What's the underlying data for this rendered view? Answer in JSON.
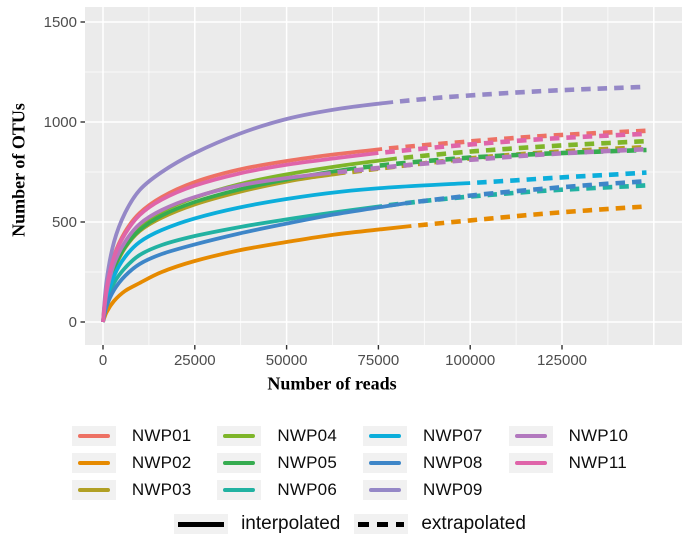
{
  "figure": {
    "x_axis_title": "Number of reads",
    "y_axis_title": "Number of OTUs"
  },
  "legend": {
    "linetypes": [
      {
        "label": "interpolated",
        "style": "solid",
        "color": "#000000"
      },
      {
        "label": "extrapolated",
        "style": "dashed",
        "color": "#000000"
      }
    ]
  },
  "chart_data": {
    "type": "line",
    "title": "",
    "xlabel": "Number of reads",
    "ylabel": "Number of OTUs",
    "x_ticks": [
      0,
      25000,
      50000,
      75000,
      100000,
      125000
    ],
    "y_ticks": [
      0,
      500,
      1000,
      1500
    ],
    "xlim": [
      -6500,
      158000
    ],
    "ylim": [
      -75,
      1575
    ],
    "grid": true,
    "panel_bg": "#EBEBEB",
    "grid_color": "#FFFFFF",
    "tick_label_color": "#4D4D4D",
    "legend_position": "bottom",
    "linetype_note": "solid = interpolated (rarefaction), dashed = extrapolated",
    "series": [
      {
        "name": "NWP01",
        "color": "#ED7164",
        "observed_reads": 76000,
        "points": [
          [
            0,
            0
          ],
          [
            1000,
            175
          ],
          [
            3000,
            330
          ],
          [
            6000,
            450
          ],
          [
            10000,
            545
          ],
          [
            16000,
            625
          ],
          [
            25000,
            700
          ],
          [
            37000,
            762
          ],
          [
            50000,
            805
          ],
          [
            63000,
            838
          ],
          [
            76000,
            865
          ],
          [
            90000,
            888
          ],
          [
            105000,
            910
          ],
          [
            120000,
            930
          ],
          [
            134000,
            944
          ],
          [
            148000,
            956
          ]
        ]
      },
      {
        "name": "NWP02",
        "color": "#E68A00",
        "observed_reads": 84000,
        "points": [
          [
            0,
            0
          ],
          [
            1000,
            50
          ],
          [
            3000,
            105
          ],
          [
            6000,
            155
          ],
          [
            10000,
            195
          ],
          [
            16000,
            250
          ],
          [
            25000,
            305
          ],
          [
            37000,
            358
          ],
          [
            50000,
            400
          ],
          [
            63000,
            437
          ],
          [
            76000,
            464
          ],
          [
            84000,
            480
          ],
          [
            100000,
            508
          ],
          [
            116000,
            535
          ],
          [
            132000,
            558
          ],
          [
            148000,
            578
          ]
        ]
      },
      {
        "name": "NWP03",
        "color": "#B1A024",
        "observed_reads": 66000,
        "points": [
          [
            0,
            0
          ],
          [
            1000,
            130
          ],
          [
            3000,
            260
          ],
          [
            6000,
            370
          ],
          [
            10000,
            455
          ],
          [
            16000,
            522
          ],
          [
            25000,
            588
          ],
          [
            37000,
            650
          ],
          [
            50000,
            702
          ],
          [
            58000,
            726
          ],
          [
            66000,
            746
          ],
          [
            82000,
            782
          ],
          [
            100000,
            818
          ],
          [
            116000,
            842
          ],
          [
            132000,
            860
          ],
          [
            148000,
            874
          ]
        ]
      },
      {
        "name": "NWP04",
        "color": "#7EB529",
        "observed_reads": 80000,
        "points": [
          [
            0,
            0
          ],
          [
            1000,
            145
          ],
          [
            3000,
            280
          ],
          [
            6000,
            390
          ],
          [
            10000,
            478
          ],
          [
            16000,
            552
          ],
          [
            25000,
            622
          ],
          [
            37000,
            688
          ],
          [
            50000,
            738
          ],
          [
            65000,
            782
          ],
          [
            80000,
            818
          ],
          [
            96000,
            846
          ],
          [
            112000,
            868
          ],
          [
            130000,
            888
          ],
          [
            148000,
            904
          ]
        ]
      },
      {
        "name": "NWP05",
        "color": "#36AC50",
        "observed_reads": 69000,
        "points": [
          [
            0,
            0
          ],
          [
            1000,
            140
          ],
          [
            3000,
            270
          ],
          [
            6000,
            375
          ],
          [
            10000,
            460
          ],
          [
            16000,
            532
          ],
          [
            25000,
            600
          ],
          [
            37000,
            662
          ],
          [
            50000,
            712
          ],
          [
            60000,
            745
          ],
          [
            69000,
            770
          ],
          [
            85000,
            800
          ],
          [
            100000,
            822
          ],
          [
            116000,
            838
          ],
          [
            132000,
            850
          ],
          [
            148000,
            860
          ]
        ]
      },
      {
        "name": "NWP06",
        "color": "#22B2A2",
        "observed_reads": 76000,
        "points": [
          [
            0,
            0
          ],
          [
            1000,
            100
          ],
          [
            3000,
            195
          ],
          [
            6000,
            270
          ],
          [
            10000,
            335
          ],
          [
            16000,
            385
          ],
          [
            25000,
            430
          ],
          [
            37000,
            474
          ],
          [
            50000,
            513
          ],
          [
            63000,
            548
          ],
          [
            76000,
            580
          ],
          [
            90000,
            610
          ],
          [
            105000,
            635
          ],
          [
            120000,
            656
          ],
          [
            134000,
            670
          ],
          [
            148000,
            683
          ]
        ]
      },
      {
        "name": "NWP07",
        "color": "#0CAEDB",
        "observed_reads": 100000,
        "points": [
          [
            0,
            0
          ],
          [
            1000,
            115
          ],
          [
            3000,
            230
          ],
          [
            6000,
            325
          ],
          [
            10000,
            400
          ],
          [
            16000,
            460
          ],
          [
            25000,
            518
          ],
          [
            37000,
            572
          ],
          [
            50000,
            615
          ],
          [
            65000,
            652
          ],
          [
            80000,
            675
          ],
          [
            100000,
            695
          ],
          [
            112000,
            708
          ],
          [
            124000,
            722
          ],
          [
            136000,
            734
          ],
          [
            148000,
            747
          ]
        ]
      },
      {
        "name": "NWP08",
        "color": "#3E86C8",
        "observed_reads": 84000,
        "points": [
          [
            0,
            0
          ],
          [
            1000,
            80
          ],
          [
            3000,
            160
          ],
          [
            6000,
            230
          ],
          [
            10000,
            290
          ],
          [
            16000,
            340
          ],
          [
            25000,
            388
          ],
          [
            37000,
            442
          ],
          [
            50000,
            492
          ],
          [
            63000,
            538
          ],
          [
            74000,
            570
          ],
          [
            84000,
            598
          ],
          [
            100000,
            632
          ],
          [
            116000,
            660
          ],
          [
            132000,
            684
          ],
          [
            148000,
            704
          ]
        ]
      },
      {
        "name": "NWP09",
        "color": "#9588C7",
        "observed_reads": 79000,
        "points": [
          [
            0,
            0
          ],
          [
            1000,
            210
          ],
          [
            3000,
            400
          ],
          [
            6000,
            545
          ],
          [
            10000,
            660
          ],
          [
            16000,
            750
          ],
          [
            25000,
            845
          ],
          [
            37000,
            940
          ],
          [
            50000,
            1015
          ],
          [
            65000,
            1068
          ],
          [
            79000,
            1100
          ],
          [
            92000,
            1122
          ],
          [
            106000,
            1140
          ],
          [
            120000,
            1155
          ],
          [
            134000,
            1166
          ],
          [
            148000,
            1176
          ]
        ]
      },
      {
        "name": "NWP10",
        "color": "#B278BE",
        "observed_reads": 62000,
        "points": [
          [
            0,
            0
          ],
          [
            1000,
            150
          ],
          [
            3000,
            290
          ],
          [
            6000,
            400
          ],
          [
            10000,
            490
          ],
          [
            16000,
            560
          ],
          [
            25000,
            625
          ],
          [
            37000,
            682
          ],
          [
            50000,
            720
          ],
          [
            62000,
            745
          ],
          [
            76000,
            772
          ],
          [
            90000,
            796
          ],
          [
            105000,
            818
          ],
          [
            120000,
            838
          ],
          [
            134000,
            852
          ],
          [
            148000,
            864
          ]
        ]
      },
      {
        "name": "NWP11",
        "color": "#DF64A9",
        "observed_reads": 75000,
        "points": [
          [
            0,
            0
          ],
          [
            1000,
            170
          ],
          [
            3000,
            325
          ],
          [
            6000,
            440
          ],
          [
            10000,
            535
          ],
          [
            16000,
            612
          ],
          [
            25000,
            682
          ],
          [
            37000,
            742
          ],
          [
            50000,
            786
          ],
          [
            63000,
            818
          ],
          [
            75000,
            845
          ],
          [
            90000,
            872
          ],
          [
            105000,
            895
          ],
          [
            120000,
            915
          ],
          [
            134000,
            929
          ],
          [
            148000,
            941
          ]
        ]
      }
    ]
  }
}
